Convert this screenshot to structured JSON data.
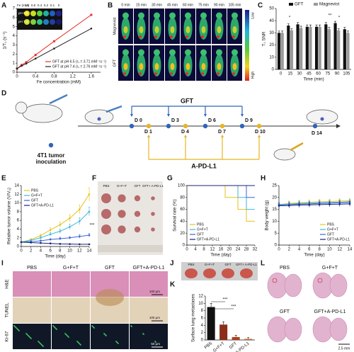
{
  "panel_labels": [
    "A",
    "B",
    "C",
    "D",
    "E",
    "F",
    "G",
    "H",
    "I",
    "J",
    "K",
    "L"
  ],
  "panel_a_inset": {
    "fe_label": "Fe (mM)",
    "fe_values": [
      1.6,
      0.8,
      0.4,
      0.2,
      0.1,
      0
    ],
    "rows": [
      "pH 6.5",
      "pH 7.4"
    ]
  },
  "panel_b": {
    "times": [
      "0 min",
      "15 min",
      "30 min",
      "45 min",
      "60 min",
      "75 min",
      "90 min",
      "105 min"
    ],
    "rows": [
      "Magnevist",
      "GFT"
    ],
    "scale": [
      "Low",
      "High"
    ]
  },
  "panel_d": {
    "gft_label": "GFT",
    "apd_label": "A-PD-L1",
    "gft_days": [
      "D 0",
      "D 3",
      "D 6",
      "D 9"
    ],
    "apd_days": [
      "D 1",
      "D 4",
      "D 7",
      "D 10"
    ],
    "end_day": "D 14",
    "inoculation": [
      "4T1 tumor",
      "inoculation"
    ]
  },
  "panel_f": {
    "groups": [
      "PBS",
      "G+F+T",
      "GFT",
      "GFT+ A-PD-L1"
    ]
  },
  "panel_i": {
    "groups": [
      "PBS",
      "G+F+T",
      "GFT",
      "GFT+A-PD-L1"
    ],
    "stains": [
      "H&E",
      "TUNEL",
      "Ki-67"
    ],
    "scale_bars": [
      "100 μm",
      "100 μm",
      "50 μm"
    ]
  },
  "panel_j": {
    "groups": [
      "PBS",
      "G+F+T",
      "GFT",
      "GFT+ A-PD-L1"
    ]
  },
  "panel_l": {
    "groups": [
      "PBS",
      "G+F+T",
      "GFT",
      "GFT+A-PD-L1"
    ],
    "scale_bar": "2.5 mm"
  },
  "chart_data": [
    {
      "type": "line",
      "x_label": "Fe concentration (mM)",
      "y_label": "1/T₁ (s⁻¹)",
      "x": [
        0,
        0.1,
        0.2,
        0.4,
        0.8,
        1.6
      ],
      "xlim": [
        0,
        1.8
      ],
      "xticks": [
        0,
        0.4,
        0.8,
        1.2,
        1.6
      ],
      "ylim": [
        0,
        7
      ],
      "yticks": [
        0,
        1,
        2,
        3,
        4,
        5,
        6,
        7
      ],
      "legend": "lower right",
      "series": [
        {
          "name": "GFT at pH 6.5 (r₁ = 3.71 mM⁻¹s⁻¹)",
          "color": "#e8322c",
          "values": [
            0.4,
            0.8,
            1.1,
            1.9,
            3.4,
            6.3
          ]
        },
        {
          "name": "GFT at pH 7.4 (r₁ = 2.76 mM⁻¹s⁻¹)",
          "color": "#222222",
          "values": [
            0.4,
            0.7,
            0.95,
            1.5,
            2.6,
            4.8
          ]
        }
      ]
    },
    {
      "type": "bar",
      "x_label": "Time (min)",
      "y_label": "T₁ SNR",
      "categories": [
        "0",
        "15",
        "30",
        "45",
        "60",
        "75",
        "90",
        "105"
      ],
      "ylim": [
        0,
        50
      ],
      "yticks": [
        0,
        10,
        20,
        30,
        40,
        50
      ],
      "legend": "upper center",
      "annotations": [
        "*",
        "**",
        "*"
      ],
      "series": [
        {
          "name": "GFT",
          "color": "#111111",
          "values": [
            30,
            36,
            37,
            35,
            35,
            37,
            38,
            33
          ],
          "errors": [
            1.5,
            1.5,
            1.5,
            1.5,
            1.5,
            1.5,
            1.5,
            1.5
          ]
        },
        {
          "name": "Magnevist",
          "color": "#9a9a9a",
          "values": [
            30,
            32,
            34,
            35,
            35,
            33,
            32,
            30
          ],
          "errors": [
            1.5,
            1.5,
            1.5,
            1.5,
            1.5,
            1.5,
            1.5,
            1.5
          ]
        }
      ]
    },
    {
      "type": "line",
      "x_label": "Time (day)",
      "y_label": "Relative tumor volume (V/V₀)",
      "x": [
        0,
        2,
        4,
        6,
        8,
        10,
        12,
        14
      ],
      "xlim": [
        0,
        14
      ],
      "xticks": [
        0,
        2,
        4,
        6,
        8,
        10,
        12,
        14
      ],
      "ylim": [
        0,
        14
      ],
      "yticks": [
        0,
        2,
        4,
        6,
        8,
        10,
        12,
        14
      ],
      "legend": "upper left",
      "annotations": [
        "***"
      ],
      "series": [
        {
          "name": "PBS",
          "color": "#e6c31c",
          "values": [
            1,
            1.6,
            2.5,
            3.8,
            5,
            6.5,
            8.5,
            12
          ],
          "errors": [
            0,
            0.2,
            0.3,
            0.5,
            0.6,
            0.8,
            1,
            1.5
          ]
        },
        {
          "name": "G+F+T",
          "color": "#3fb6dc",
          "values": [
            1,
            1.4,
            2,
            2.8,
            3.5,
            4.5,
            5.8,
            8
          ],
          "errors": [
            0,
            0.2,
            0.3,
            0.4,
            0.5,
            0.6,
            0.8,
            1
          ]
        },
        {
          "name": "GFT",
          "color": "#3a66d6",
          "values": [
            1,
            1.1,
            1.3,
            1.6,
            1.8,
            2,
            2.3,
            2.6
          ],
          "errors": [
            0,
            0.1,
            0.2,
            0.2,
            0.3,
            0.3,
            0.4,
            0.4
          ]
        },
        {
          "name": "GFT+A-PD-L1",
          "color": "#1a237e",
          "values": [
            1,
            0.9,
            0.8,
            0.7,
            0.6,
            0.55,
            0.5,
            0.5
          ],
          "errors": [
            0,
            0.1,
            0.1,
            0.1,
            0.1,
            0.1,
            0.1,
            0.1
          ]
        }
      ]
    },
    {
      "type": "line",
      "step": true,
      "x_label": "Time (day)",
      "y_label": "Survival rate (%)",
      "x": [
        0,
        18,
        24,
        26,
        28,
        30,
        32
      ],
      "xlim": [
        0,
        32
      ],
      "xticks": [
        0,
        4,
        8,
        12,
        16,
        20,
        24,
        28,
        32
      ],
      "ylim": [
        0,
        100
      ],
      "yticks": [
        0,
        20,
        40,
        60,
        80,
        100
      ],
      "legend": "lower left",
      "series": [
        {
          "name": "PBS",
          "color": "#e6c31c",
          "values": [
            100,
            80,
            60,
            60,
            40,
            40,
            40
          ]
        },
        {
          "name": "G+F+T",
          "color": "#3fb6dc",
          "values": [
            100,
            100,
            80,
            80,
            60,
            60,
            60
          ]
        },
        {
          "name": "GFT",
          "color": "#3a66d6",
          "values": [
            100,
            100,
            100,
            100,
            80,
            80,
            80
          ]
        },
        {
          "name": "GFT+A-PD-L1",
          "color": "#1a237e",
          "values": [
            100,
            100,
            100,
            100,
            100,
            100,
            100
          ]
        }
      ]
    },
    {
      "type": "line",
      "x_label": "Time (day)",
      "y_label": "Body weight (g)",
      "x": [
        0,
        2,
        4,
        6,
        8,
        10,
        12,
        14
      ],
      "xlim": [
        0,
        14
      ],
      "xticks": [
        0,
        2,
        4,
        6,
        8,
        10,
        12,
        14
      ],
      "ylim": [
        0,
        25
      ],
      "yticks": [
        0,
        5,
        10,
        15,
        20,
        25
      ],
      "legend": "lower right",
      "series": [
        {
          "name": "PBS",
          "color": "#e6c31c",
          "values": [
            17,
            17.5,
            17.8,
            18,
            18.2,
            18.3,
            18.5,
            18.6
          ],
          "errors": [
            1,
            1,
            1,
            1,
            1,
            1,
            1,
            1
          ]
        },
        {
          "name": "G+F+T",
          "color": "#3fb6dc",
          "values": [
            17,
            17.2,
            17.5,
            17.6,
            17.8,
            17.9,
            18,
            18.2
          ],
          "errors": [
            1,
            1,
            1,
            1,
            1,
            1,
            1,
            1
          ]
        },
        {
          "name": "GFT",
          "color": "#3a66d6",
          "values": [
            16.8,
            17,
            17.2,
            17.3,
            17.5,
            17.6,
            17.8,
            17.9
          ],
          "errors": [
            1,
            1,
            1,
            1,
            1,
            1,
            1,
            1
          ]
        },
        {
          "name": "GFT+A-PD-L1",
          "color": "#1a237e",
          "values": [
            16.5,
            16.6,
            16.8,
            16.9,
            17,
            17.1,
            17.2,
            17.3
          ],
          "errors": [
            1,
            1,
            1,
            1,
            1,
            1,
            1,
            1
          ]
        }
      ]
    },
    {
      "type": "bar",
      "y_label": "Surface lung metastases",
      "categories": [
        "PBS",
        "G+F+T",
        "GFT",
        "GFT+A-PD-L1"
      ],
      "ylim": [
        0,
        12
      ],
      "yticks": [
        0,
        2,
        4,
        6,
        8,
        10,
        12
      ],
      "colors": [
        "#111111",
        "#8b2e1a",
        "#a8421c",
        "#c0683a"
      ],
      "annotations": [
        "***",
        "***"
      ],
      "series": [
        {
          "values": [
            9,
            4.2,
            0.8,
            0.3
          ],
          "errors": [
            1,
            0.8,
            0.5,
            0.4
          ]
        }
      ]
    }
  ]
}
